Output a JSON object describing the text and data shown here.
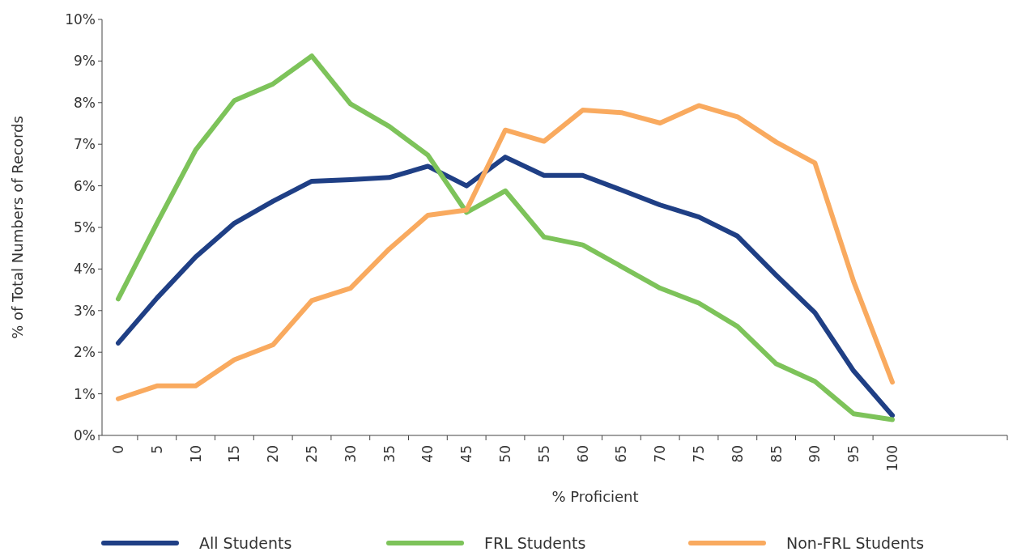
{
  "chart_data": {
    "type": "line",
    "xlabel": "% Proficient",
    "ylabel": "% of Total Numbers of Records",
    "categories": [
      "0",
      "5",
      "10",
      "15",
      "20",
      "25",
      "30",
      "35",
      "40",
      "45",
      "50",
      "55",
      "60",
      "65",
      "70",
      "75",
      "80",
      "85",
      "90",
      "95",
      "100"
    ],
    "ylim": [
      0,
      10
    ],
    "yticks": [
      {
        "value": 0,
        "label": "0%"
      },
      {
        "value": 1,
        "label": "1%"
      },
      {
        "value": 2,
        "label": "2%"
      },
      {
        "value": 3,
        "label": "3%"
      },
      {
        "value": 4,
        "label": "4%"
      },
      {
        "value": 5,
        "label": "5%"
      },
      {
        "value": 6,
        "label": "6%"
      },
      {
        "value": 7,
        "label": "7%"
      },
      {
        "value": 8,
        "label": "8%"
      },
      {
        "value": 9,
        "label": "9%"
      },
      {
        "value": 10,
        "label": "10%"
      }
    ],
    "grid": false,
    "legend": "bottom",
    "marker": "none",
    "line_style": "solid",
    "series": [
      {
        "name": "All Students",
        "color": "#1f3f85",
        "values": [
          2.22,
          3.3,
          4.29,
          5.1,
          5.63,
          6.11,
          6.15,
          6.2,
          6.47,
          6.0,
          6.69,
          6.25,
          6.25,
          5.9,
          5.54,
          5.25,
          4.79,
          3.85,
          2.95,
          1.55,
          0.48
        ]
      },
      {
        "name": "FRL Students",
        "color": "#7dc35a",
        "values": [
          3.28,
          5.1,
          6.86,
          8.05,
          8.45,
          9.12,
          7.97,
          7.43,
          6.74,
          5.36,
          5.88,
          4.77,
          4.58,
          4.06,
          3.54,
          3.18,
          2.62,
          1.72,
          1.3,
          0.52,
          0.38
        ]
      },
      {
        "name": "Non-FRL Students",
        "color": "#f9aa5f",
        "values": [
          0.88,
          1.19,
          1.19,
          1.82,
          2.18,
          3.24,
          3.54,
          4.48,
          5.29,
          5.42,
          7.34,
          7.07,
          7.82,
          7.76,
          7.51,
          7.93,
          7.66,
          7.05,
          6.55,
          3.7,
          1.28
        ]
      }
    ]
  }
}
